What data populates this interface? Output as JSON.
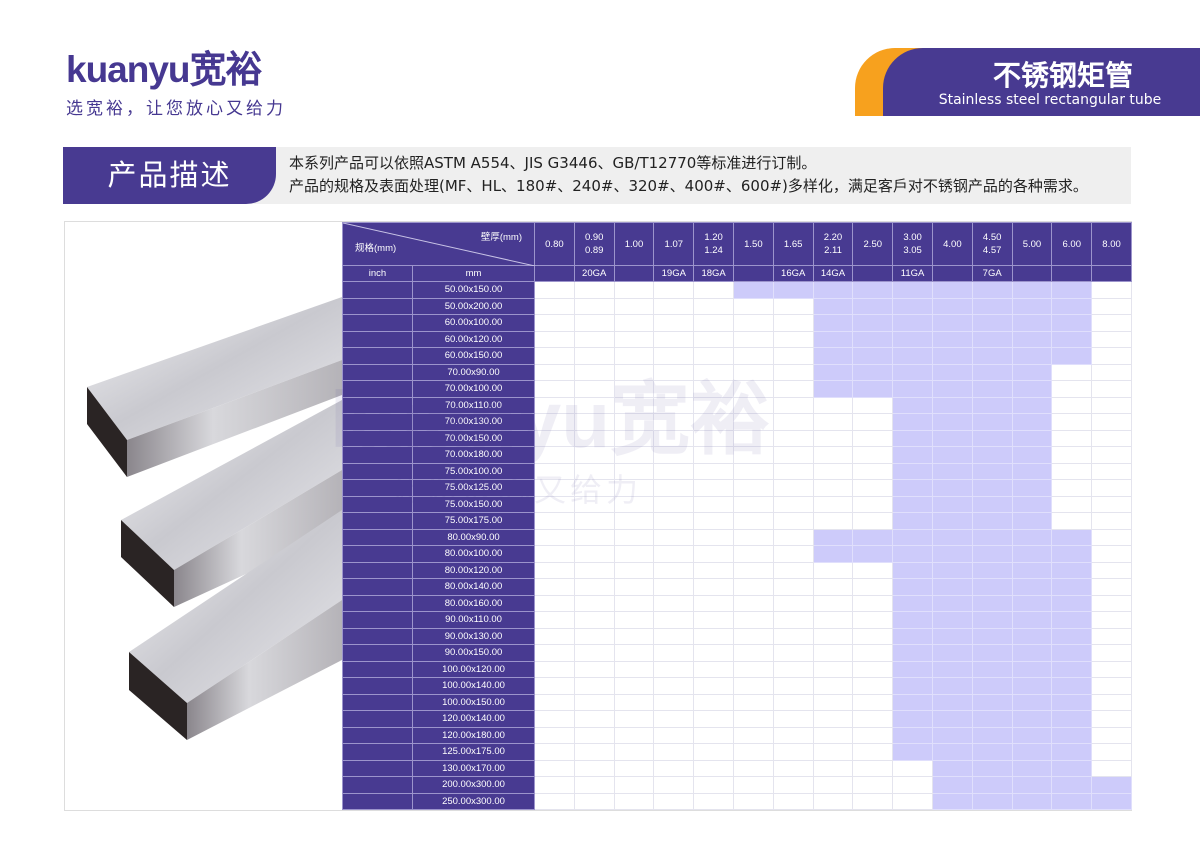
{
  "header": {
    "logo_text": "kuanyu宽裕",
    "slogan": "选宽裕，让您放心又给力",
    "title_cn": "不锈钢矩管",
    "title_en": "Stainless steel rectangular tube"
  },
  "colors": {
    "primary": "#483a91",
    "accent": "#f7a11e",
    "available": "#cdcbfa"
  },
  "description": {
    "label": "产品描述",
    "lines": [
      "本系列产品可以依照ASTM A554、JIS G3446、GB/T12770等标准进行订制。",
      "产品的规格及表面处理(MF、HL、180#、240#、320#、400#、600#)多样化，满足客戶对不锈钢产品的各种需求。"
    ]
  },
  "table": {
    "corner_top": "壁厚(mm)",
    "corner_bottom": "规格(mm)",
    "inch_label": "inch",
    "mm_label": "mm",
    "thickness": [
      [
        "0.80"
      ],
      [
        "0.90",
        "0.89"
      ],
      [
        "1.00"
      ],
      [
        "1.07"
      ],
      [
        "1.20",
        "1.24"
      ],
      [
        "1.50"
      ],
      [
        "1.65"
      ],
      [
        "2.20",
        "2.11"
      ],
      [
        "2.50"
      ],
      [
        "3.00",
        "3.05"
      ],
      [
        "4.00"
      ],
      [
        "4.50",
        "4.57"
      ],
      [
        "5.00"
      ],
      [
        "6.00"
      ],
      [
        "8.00"
      ]
    ],
    "gauge": [
      "",
      "20GA",
      "",
      "19GA",
      "18GA",
      "",
      "16GA",
      "14GA",
      "",
      "11GA",
      "",
      "7GA",
      "",
      "",
      ""
    ],
    "rows": [
      {
        "inch": "",
        "size": "50.00x150.00",
        "available": [
          "1.50",
          "1.65",
          "2.20",
          "2.50",
          "3.00",
          "4.00",
          "4.50",
          "5.00",
          "6.00"
        ]
      },
      {
        "inch": "",
        "size": "50.00x200.00",
        "available": [
          "2.20",
          "2.50",
          "3.00",
          "4.00",
          "4.50",
          "5.00",
          "6.00"
        ]
      },
      {
        "inch": "",
        "size": "60.00x100.00",
        "available": [
          "2.20",
          "2.50",
          "3.00",
          "4.00",
          "4.50",
          "5.00",
          "6.00"
        ]
      },
      {
        "inch": "",
        "size": "60.00x120.00",
        "available": [
          "2.20",
          "2.50",
          "3.00",
          "4.00",
          "4.50",
          "5.00",
          "6.00"
        ]
      },
      {
        "inch": "",
        "size": "60.00x150.00",
        "available": [
          "2.20",
          "2.50",
          "3.00",
          "4.00",
          "4.50",
          "5.00",
          "6.00"
        ]
      },
      {
        "inch": "",
        "size": "70.00x90.00",
        "available": [
          "2.20",
          "2.50",
          "3.00",
          "4.00",
          "4.50",
          "5.00"
        ]
      },
      {
        "inch": "",
        "size": "70.00x100.00",
        "available": [
          "2.20",
          "2.50",
          "3.00",
          "4.00",
          "4.50",
          "5.00"
        ]
      },
      {
        "inch": "",
        "size": "70.00x110.00",
        "available": [
          "3.00",
          "4.00",
          "4.50",
          "5.00"
        ]
      },
      {
        "inch": "",
        "size": "70.00x130.00",
        "available": [
          "3.00",
          "4.00",
          "4.50",
          "5.00"
        ]
      },
      {
        "inch": "",
        "size": "70.00x150.00",
        "available": [
          "3.00",
          "4.00",
          "4.50",
          "5.00"
        ]
      },
      {
        "inch": "",
        "size": "70.00x180.00",
        "available": [
          "3.00",
          "4.00",
          "4.50",
          "5.00"
        ]
      },
      {
        "inch": "",
        "size": "75.00x100.00",
        "available": [
          "3.00",
          "4.00",
          "4.50",
          "5.00"
        ]
      },
      {
        "inch": "",
        "size": "75.00x125.00",
        "available": [
          "3.00",
          "4.00",
          "4.50",
          "5.00"
        ]
      },
      {
        "inch": "",
        "size": "75.00x150.00",
        "available": [
          "3.00",
          "4.00",
          "4.50",
          "5.00"
        ]
      },
      {
        "inch": "",
        "size": "75.00x175.00",
        "available": [
          "3.00",
          "4.00",
          "4.50",
          "5.00"
        ]
      },
      {
        "inch": "",
        "size": "80.00x90.00",
        "available": [
          "2.20",
          "2.50",
          "3.00",
          "4.00",
          "4.50",
          "5.00",
          "6.00"
        ]
      },
      {
        "inch": "",
        "size": "80.00x100.00",
        "available": [
          "2.20",
          "2.50",
          "3.00",
          "4.00",
          "4.50",
          "5.00",
          "6.00"
        ]
      },
      {
        "inch": "",
        "size": "80.00x120.00",
        "available": [
          "3.00",
          "4.00",
          "4.50",
          "5.00",
          "6.00"
        ]
      },
      {
        "inch": "",
        "size": "80.00x140.00",
        "available": [
          "3.00",
          "4.00",
          "4.50",
          "5.00",
          "6.00"
        ]
      },
      {
        "inch": "",
        "size": "80.00x160.00",
        "available": [
          "3.00",
          "4.00",
          "4.50",
          "5.00",
          "6.00"
        ]
      },
      {
        "inch": "",
        "size": "90.00x110.00",
        "available": [
          "3.00",
          "4.00",
          "4.50",
          "5.00",
          "6.00"
        ]
      },
      {
        "inch": "",
        "size": "90.00x130.00",
        "available": [
          "3.00",
          "4.00",
          "4.50",
          "5.00",
          "6.00"
        ]
      },
      {
        "inch": "",
        "size": "90.00x150.00",
        "available": [
          "3.00",
          "4.00",
          "4.50",
          "5.00",
          "6.00"
        ]
      },
      {
        "inch": "",
        "size": "100.00x120.00",
        "available": [
          "3.00",
          "4.00",
          "4.50",
          "5.00",
          "6.00"
        ]
      },
      {
        "inch": "",
        "size": "100.00x140.00",
        "available": [
          "3.00",
          "4.00",
          "4.50",
          "5.00",
          "6.00"
        ]
      },
      {
        "inch": "",
        "size": "100.00x150.00",
        "available": [
          "3.00",
          "4.00",
          "4.50",
          "5.00",
          "6.00"
        ]
      },
      {
        "inch": "",
        "size": "120.00x140.00",
        "available": [
          "3.00",
          "4.00",
          "4.50",
          "5.00",
          "6.00"
        ]
      },
      {
        "inch": "",
        "size": "120.00x180.00",
        "available": [
          "3.00",
          "4.00",
          "4.50",
          "5.00",
          "6.00"
        ]
      },
      {
        "inch": "",
        "size": "125.00x175.00",
        "available": [
          "3.00",
          "4.00",
          "4.50",
          "5.00",
          "6.00"
        ]
      },
      {
        "inch": "",
        "size": "130.00x170.00",
        "available": [
          "4.00",
          "4.50",
          "5.00",
          "6.00"
        ]
      },
      {
        "inch": "",
        "size": "200.00x300.00",
        "available": [
          "4.00",
          "4.50",
          "5.00",
          "6.00",
          "8.00"
        ]
      },
      {
        "inch": "",
        "size": "250.00x300.00",
        "available": [
          "4.00",
          "4.50",
          "5.00",
          "6.00",
          "8.00"
        ]
      }
    ]
  }
}
